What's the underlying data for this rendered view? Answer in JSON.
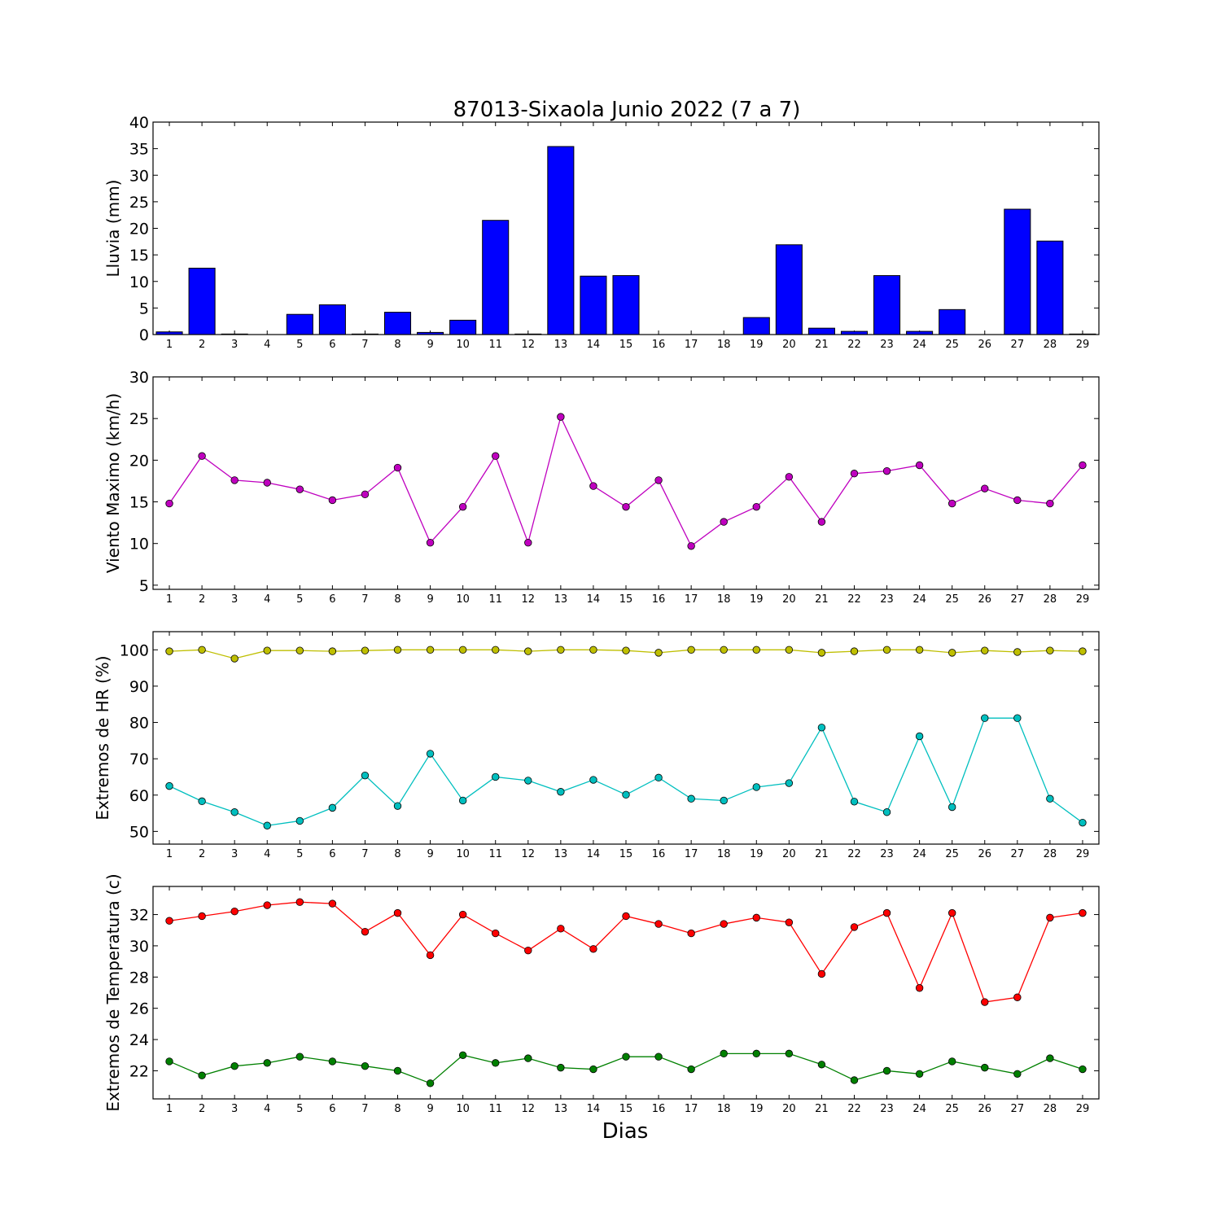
{
  "title": "87013-Sixaola Junio 2022  (7 a 7)",
  "xlabel": "Dias",
  "chart_data": [
    {
      "type": "bar",
      "ylabel": "Lluvia (mm)",
      "ylim": [
        0,
        40
      ],
      "yticks": [
        0,
        5,
        10,
        15,
        20,
        25,
        30,
        35,
        40
      ],
      "categories": [
        "1",
        "2",
        "3",
        "4",
        "5",
        "6",
        "7",
        "8",
        "9",
        "10",
        "11",
        "12",
        "13",
        "14",
        "15",
        "16",
        "17",
        "18",
        "19",
        "20",
        "21",
        "22",
        "23",
        "24",
        "25",
        "26",
        "27",
        "28",
        "29"
      ],
      "series": [
        {
          "color": "#0000ff",
          "values": [
            0.5,
            12.5,
            0.1,
            0.0,
            3.8,
            5.6,
            0.1,
            4.2,
            0.4,
            2.7,
            21.5,
            0.1,
            35.4,
            11.0,
            11.1,
            0.0,
            0.0,
            0.0,
            3.2,
            16.9,
            1.2,
            0.6,
            11.1,
            0.6,
            4.7,
            0.0,
            23.6,
            17.6,
            0.1
          ]
        }
      ]
    },
    {
      "type": "line",
      "ylabel": "Viento Maximo (km/h)",
      "ylim": [
        4.5,
        30
      ],
      "yticks": [
        5,
        10,
        15,
        20,
        25,
        30
      ],
      "categories": [
        "1",
        "2",
        "3",
        "4",
        "5",
        "6",
        "7",
        "8",
        "9",
        "10",
        "11",
        "12",
        "13",
        "14",
        "15",
        "16",
        "17",
        "18",
        "19",
        "20",
        "21",
        "22",
        "23",
        "24",
        "25",
        "26",
        "27",
        "28",
        "29"
      ],
      "series": [
        {
          "color": "#bf00bf",
          "values": [
            14.8,
            20.5,
            17.6,
            17.3,
            16.5,
            15.2,
            15.9,
            19.1,
            10.1,
            14.4,
            20.5,
            10.1,
            25.2,
            16.9,
            14.4,
            17.6,
            9.7,
            12.6,
            14.4,
            18.0,
            12.6,
            18.4,
            18.7,
            19.4,
            14.8,
            16.6,
            15.2,
            14.8,
            19.4
          ]
        }
      ]
    },
    {
      "type": "line",
      "ylabel": "Extremos de HR (%)",
      "ylim": [
        46.5,
        105
      ],
      "yticks": [
        50,
        60,
        70,
        80,
        90,
        100
      ],
      "categories": [
        "1",
        "2",
        "3",
        "4",
        "5",
        "6",
        "7",
        "8",
        "9",
        "10",
        "11",
        "12",
        "13",
        "14",
        "15",
        "16",
        "17",
        "18",
        "19",
        "20",
        "21",
        "22",
        "23",
        "24",
        "25",
        "26",
        "27",
        "28",
        "29"
      ],
      "series": [
        {
          "color": "#bfbf00",
          "values": [
            99.6,
            100,
            97.6,
            99.8,
            99.8,
            99.6,
            99.8,
            100,
            100,
            100,
            100,
            99.6,
            100,
            100,
            99.8,
            99.2,
            100,
            100,
            100,
            100,
            99.2,
            99.6,
            100,
            100,
            99.2,
            99.8,
            99.4,
            99.8,
            99.6
          ]
        },
        {
          "color": "#00bfbf",
          "values": [
            62.5,
            58.3,
            55.3,
            51.6,
            52.9,
            56.5,
            65.4,
            57.0,
            71.4,
            58.5,
            65.0,
            64.0,
            60.9,
            64.2,
            60.1,
            64.8,
            59.0,
            58.5,
            62.2,
            63.3,
            78.6,
            58.2,
            55.3,
            76.2,
            56.7,
            81.2,
            81.2,
            59.0,
            52.4
          ]
        }
      ]
    },
    {
      "type": "line",
      "ylabel": "Extremos de Temperatura (c)",
      "ylim": [
        20.2,
        33.8
      ],
      "yticks": [
        22,
        24,
        26,
        28,
        30,
        32
      ],
      "categories": [
        "1",
        "2",
        "3",
        "4",
        "5",
        "6",
        "7",
        "8",
        "9",
        "10",
        "11",
        "12",
        "13",
        "14",
        "15",
        "16",
        "17",
        "18",
        "19",
        "20",
        "21",
        "22",
        "23",
        "24",
        "25",
        "26",
        "27",
        "28",
        "29"
      ],
      "series": [
        {
          "color": "#ff0000",
          "values": [
            31.6,
            31.9,
            32.2,
            32.6,
            32.8,
            32.7,
            30.9,
            32.1,
            29.4,
            32.0,
            30.8,
            29.7,
            31.1,
            29.8,
            31.9,
            31.4,
            30.8,
            31.4,
            31.8,
            31.5,
            28.2,
            31.2,
            32.1,
            27.3,
            32.1,
            26.4,
            26.7,
            31.8,
            32.1
          ]
        },
        {
          "color": "#008000",
          "values": [
            22.6,
            21.7,
            22.3,
            22.5,
            22.9,
            22.6,
            22.3,
            22.0,
            21.2,
            23.0,
            22.5,
            22.8,
            22.2,
            22.1,
            22.9,
            22.9,
            22.1,
            23.1,
            23.1,
            23.1,
            22.4,
            21.4,
            22.0,
            21.8,
            22.6,
            22.2,
            21.8,
            22.8,
            22.1
          ]
        }
      ]
    }
  ]
}
